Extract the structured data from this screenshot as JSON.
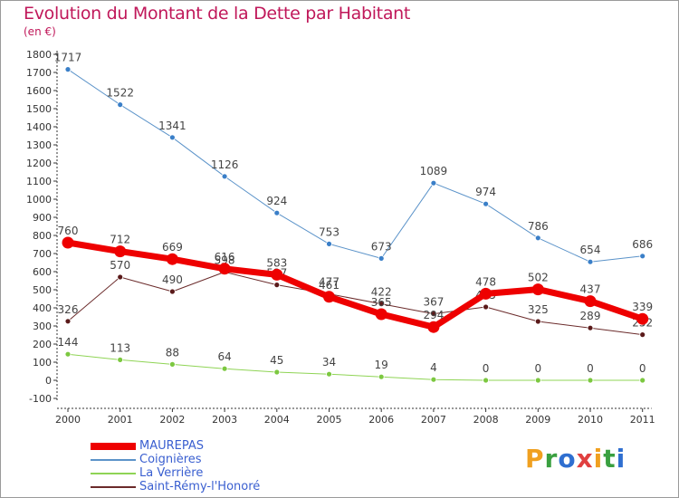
{
  "header": {
    "title": "Evolution du Montant de la Dette par Habitant",
    "unit": "(en €)"
  },
  "logo": {
    "text": "Proxiti",
    "colors": [
      "#f0a020",
      "#3aa040",
      "#2f6fd0",
      "#e04040",
      "#f0a020",
      "#3aa040",
      "#2f6fd0"
    ]
  },
  "chart_data": {
    "type": "line",
    "title": "Evolution du Montant de la Dette par Habitant",
    "ylabel": "(en €)",
    "xlabel": "",
    "x": [
      "2000",
      "2001",
      "2002",
      "2003",
      "2004",
      "2005",
      "2006",
      "2007",
      "2008",
      "2009",
      "2010",
      "2011"
    ],
    "ylim": [
      -100,
      1800
    ],
    "yticks": [
      "-100",
      "0",
      "100",
      "200",
      "300",
      "400",
      "500",
      "600",
      "700",
      "800",
      "900",
      "1000",
      "1100",
      "1200",
      "1300",
      "1400",
      "1500",
      "1600",
      "1700",
      "1800"
    ],
    "grid": false,
    "legend_position": "bottom-left",
    "series": [
      {
        "name": "Coignières",
        "color": "#5b93c9",
        "marker": "#3a7fc8",
        "width": 1,
        "values": [
          1717,
          1522,
          1341,
          1126,
          924,
          753,
          673,
          1089,
          974,
          786,
          654,
          686
        ],
        "labels": [
          "1717",
          "1522",
          "1341",
          "1126",
          "924",
          "753",
          "673",
          "1089",
          "974",
          "786",
          "654",
          "686"
        ]
      },
      {
        "name": "La Verrière",
        "color": "#8fd455",
        "marker": "#7cc840",
        "width": 1,
        "values": [
          144,
          113,
          88,
          64,
          45,
          34,
          19,
          4,
          0,
          0,
          0,
          0
        ],
        "labels": [
          "144",
          "113",
          "88",
          "64",
          "45",
          "34",
          "19",
          "4",
          "0",
          "0",
          "0",
          "0"
        ]
      },
      {
        "name": "Saint-Rémy-l'Honoré",
        "color": "#6b2b2b",
        "marker": "#5a1a1a",
        "width": 1,
        "values": [
          326,
          570,
          490,
          598,
          527,
          477,
          422,
          367,
          405,
          325,
          289,
          252
        ],
        "labels": [
          "326",
          "570",
          "490",
          "598",
          "527",
          "477",
          "422",
          "367",
          "405",
          "325",
          "289",
          "252"
        ]
      },
      {
        "name": "MAUREPAS",
        "color": "#ee0000",
        "marker": "#ee0000",
        "width": 7,
        "values": [
          760,
          712,
          669,
          616,
          583,
          461,
          365,
          294,
          478,
          502,
          437,
          339
        ],
        "labels": [
          "760",
          "712",
          "669",
          "616",
          "583",
          "461",
          "365",
          "294",
          "478",
          "502",
          "437",
          "339"
        ]
      }
    ]
  },
  "legend_order": [
    "MAUREPAS",
    "Coignières",
    "La Verrière",
    "Saint-Rémy-l'Honoré"
  ]
}
